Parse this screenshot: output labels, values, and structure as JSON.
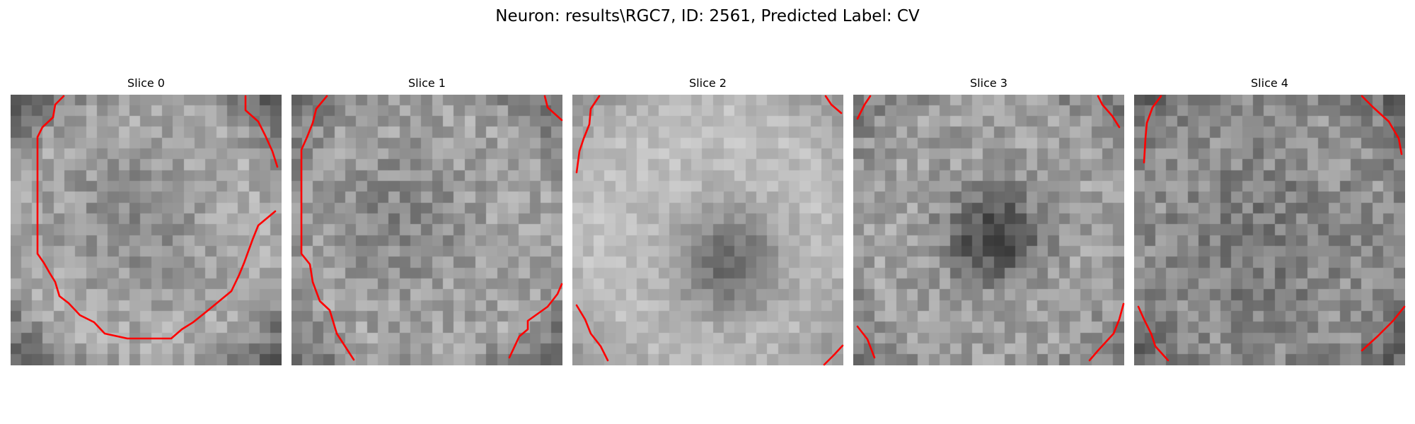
{
  "title": "Neuron: results\\RGC7, ID: 2561, Predicted Label: CV",
  "contour_color": "#ff0000",
  "colormap": "gray",
  "grid_size": 25,
  "slices": [
    {
      "label": "Slice 0"
    },
    {
      "label": "Slice 1"
    },
    {
      "label": "Slice 2"
    },
    {
      "label": "Slice 3"
    },
    {
      "label": "Slice 4"
    }
  ]
}
